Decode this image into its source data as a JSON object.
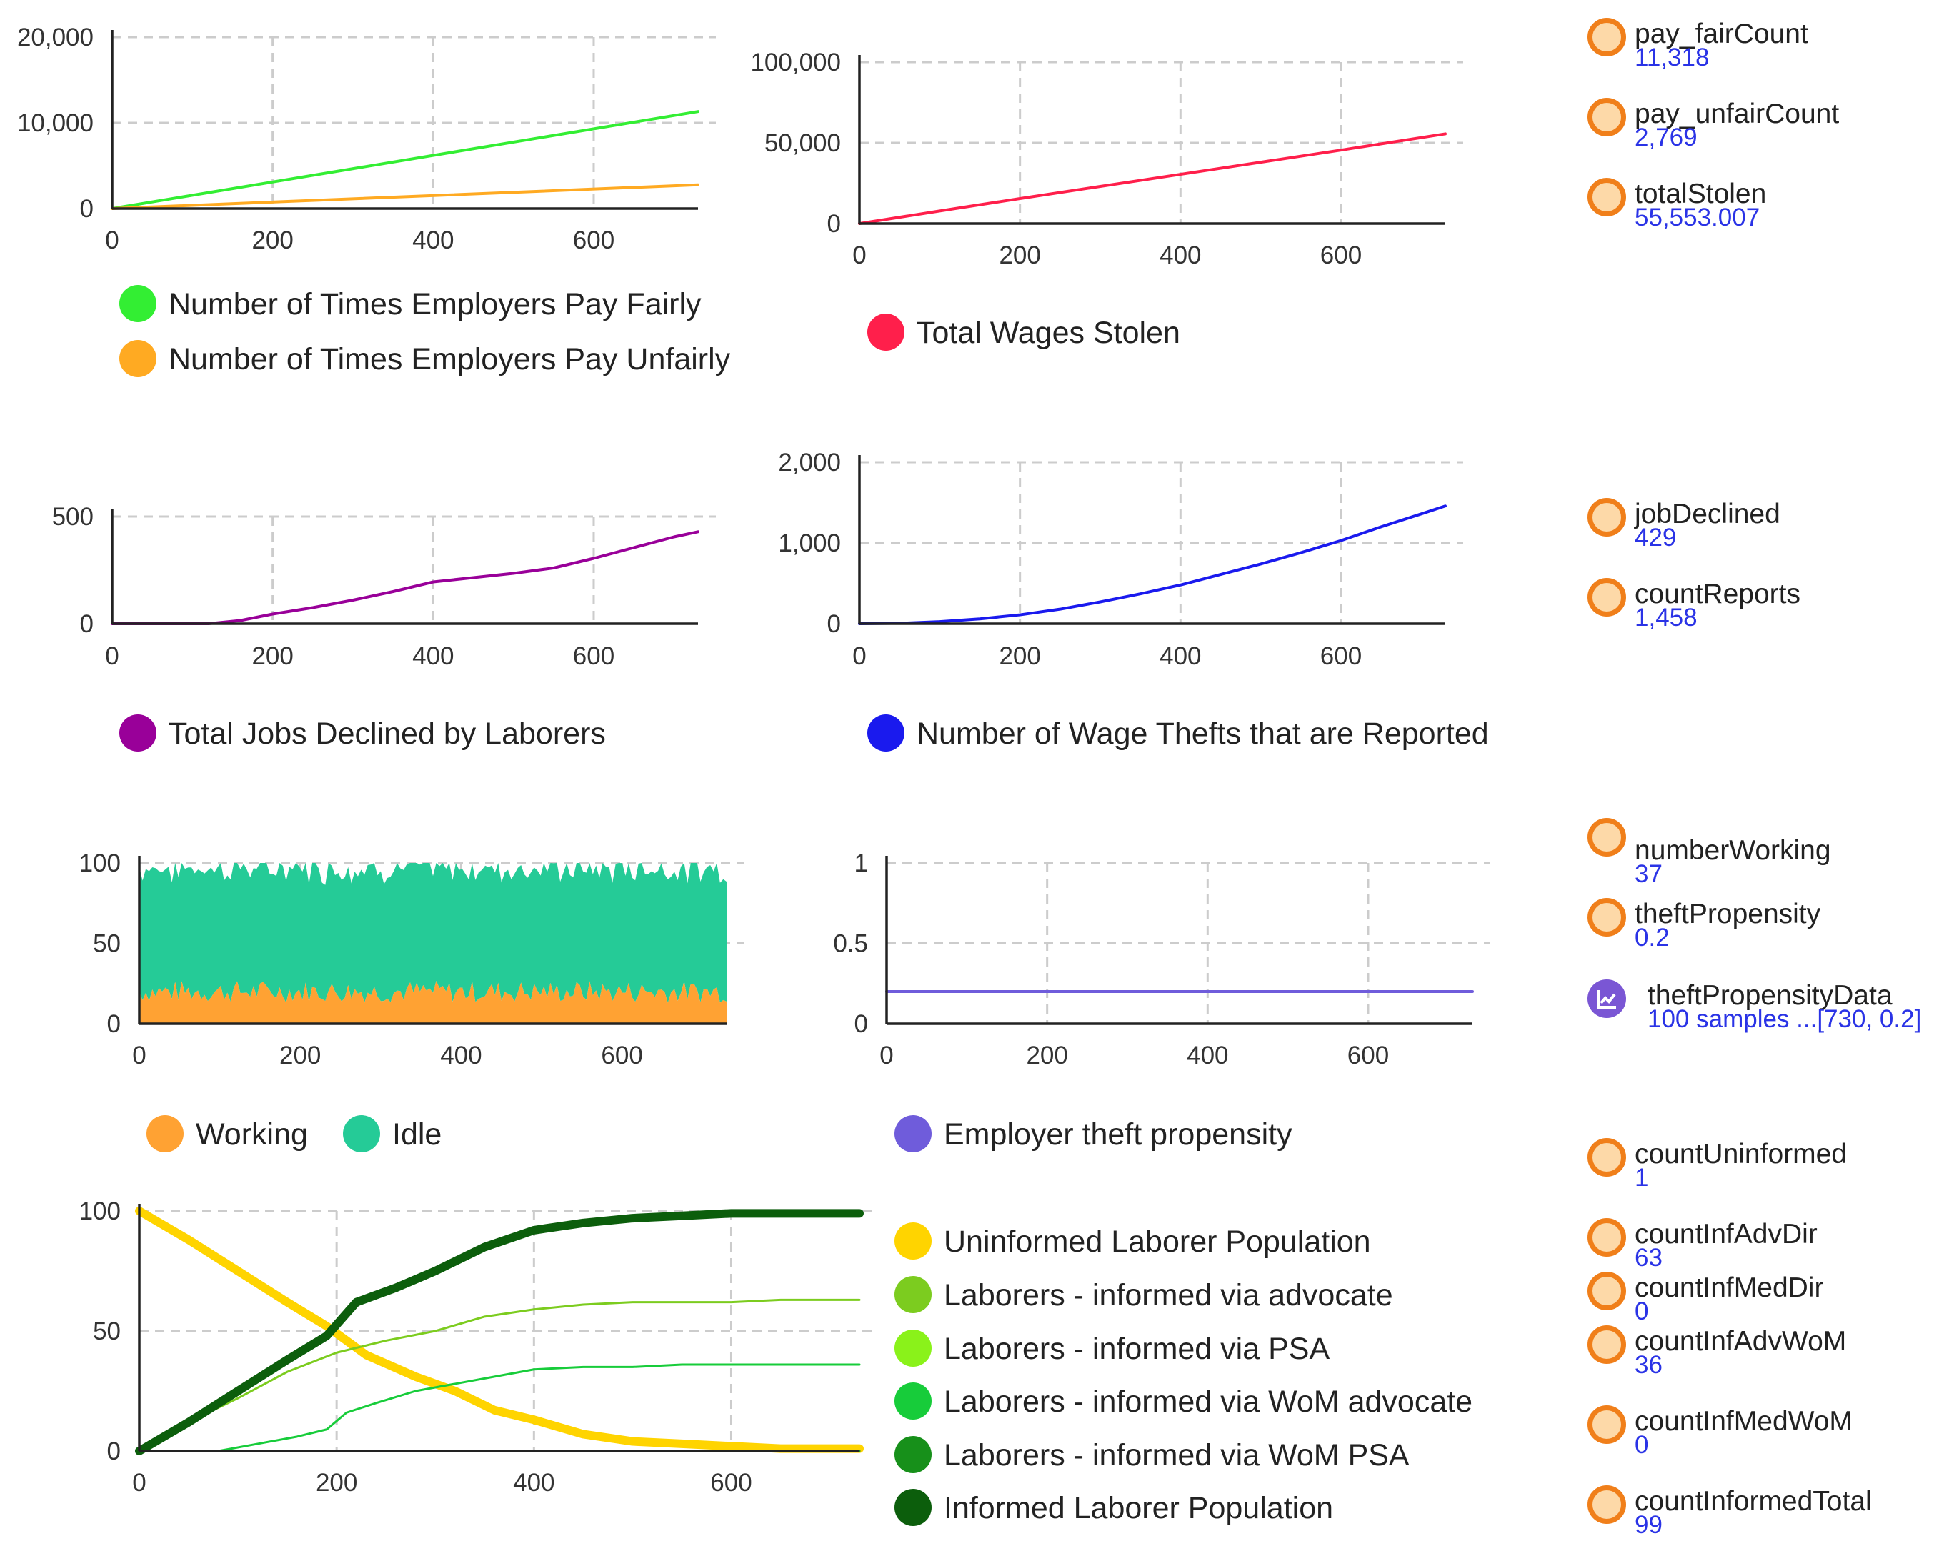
{
  "colors": {
    "payFair": "#33ee33",
    "payUnfair": "#ffaa22",
    "stolen": "#ff1f4b",
    "declined": "#990099",
    "reports": "#1a1aee",
    "working": "#ffa233",
    "idle": "#25cb97",
    "propensity": "#6f5cdb",
    "uninformed": "#ffd400",
    "adv": "#7ccc1f",
    "psa": "#8af21a",
    "womAdv": "#17cc3a",
    "womPsa": "#17901a",
    "informed": "#0c5e0c"
  },
  "chart_data": [
    {
      "id": "pay",
      "type": "line",
      "title": "",
      "xlabel": "",
      "ylabel": "",
      "xlim": [
        0,
        730
      ],
      "ylim": [
        0,
        20000
      ],
      "xticks": [
        "0",
        "200",
        "400",
        "600"
      ],
      "yticks": [
        "0",
        "10,000",
        "20,000"
      ],
      "series": [
        {
          "name": "Number of Times Employers Pay Fairly",
          "color_key": "payFair",
          "x": [
            0,
            730
          ],
          "values": [
            0,
            11318
          ]
        },
        {
          "name": "Number of Times Employers Pay Unfairly",
          "color_key": "payUnfair",
          "x": [
            0,
            730
          ],
          "values": [
            0,
            2769
          ]
        }
      ]
    },
    {
      "id": "stolen",
      "type": "line",
      "title": "",
      "xlabel": "",
      "ylabel": "",
      "xlim": [
        0,
        730
      ],
      "ylim": [
        0,
        100000
      ],
      "xticks": [
        "0",
        "200",
        "400",
        "600"
      ],
      "yticks": [
        "0",
        "50,000",
        "100,000"
      ],
      "series": [
        {
          "name": "Total Wages Stolen",
          "color_key": "stolen",
          "x": [
            0,
            100,
            200,
            300,
            400,
            500,
            600,
            730
          ],
          "values": [
            0,
            7800,
            15500,
            23000,
            30500,
            38000,
            45500,
            55553
          ]
        }
      ]
    },
    {
      "id": "declined",
      "type": "line",
      "title": "",
      "xlabel": "",
      "ylabel": "",
      "xlim": [
        0,
        730
      ],
      "ylim": [
        0,
        500
      ],
      "xticks": [
        "0",
        "200",
        "400",
        "600"
      ],
      "yticks": [
        "0",
        "500"
      ],
      "series": [
        {
          "name": "Total Jobs Declined by Laborers",
          "color_key": "declined",
          "x": [
            0,
            120,
            160,
            200,
            250,
            300,
            350,
            400,
            450,
            500,
            550,
            600,
            650,
            700,
            730
          ],
          "values": [
            0,
            0,
            15,
            45,
            75,
            110,
            150,
            195,
            215,
            235,
            260,
            305,
            355,
            405,
            429
          ]
        }
      ]
    },
    {
      "id": "reports",
      "type": "line",
      "title": "",
      "xlabel": "",
      "ylabel": "",
      "xlim": [
        0,
        730
      ],
      "ylim": [
        0,
        2000
      ],
      "xticks": [
        "0",
        "200",
        "400",
        "600"
      ],
      "yticks": [
        "0",
        "1,000",
        "2,000"
      ],
      "series": [
        {
          "name": "Number of Wage Thefts that are Reported",
          "color_key": "reports",
          "x": [
            0,
            50,
            100,
            150,
            200,
            250,
            300,
            350,
            400,
            450,
            500,
            550,
            600,
            650,
            700,
            730
          ],
          "values": [
            0,
            5,
            25,
            60,
            110,
            180,
            270,
            370,
            480,
            610,
            740,
            880,
            1030,
            1200,
            1360,
            1458
          ]
        }
      ]
    },
    {
      "id": "workers",
      "type": "area",
      "stacked": true,
      "title": "",
      "xlabel": "",
      "ylabel": "",
      "xlim": [
        0,
        730
      ],
      "ylim": [
        0,
        100
      ],
      "xticks": [
        "0",
        "200",
        "400",
        "600"
      ],
      "yticks": [
        "0",
        "50",
        "100"
      ],
      "series": [
        {
          "name": "Working",
          "color_key": "working",
          "mean": 20,
          "noise": 7
        },
        {
          "name": "Idle",
          "color_key": "idle",
          "mean": 77,
          "noise": 5
        }
      ]
    },
    {
      "id": "propensity",
      "type": "line",
      "title": "",
      "xlabel": "",
      "ylabel": "",
      "xlim": [
        0,
        730
      ],
      "ylim": [
        0,
        1
      ],
      "xticks": [
        "0",
        "200",
        "400",
        "600"
      ],
      "yticks": [
        "0",
        "0.5",
        "1"
      ],
      "series": [
        {
          "name": "Employer theft propensity",
          "color_key": "propensity",
          "x": [
            0,
            730
          ],
          "values": [
            0.2,
            0.2
          ]
        }
      ]
    },
    {
      "id": "information",
      "type": "line",
      "title": "",
      "xlabel": "",
      "ylabel": "",
      "xlim": [
        0,
        730
      ],
      "ylim": [
        0,
        100
      ],
      "xticks": [
        "0",
        "200",
        "400",
        "600"
      ],
      "yticks": [
        "0",
        "50",
        "100"
      ],
      "series": [
        {
          "name": "Uninformed Laborer Population",
          "color_key": "uninformed",
          "width": 12,
          "x": [
            0,
            50,
            100,
            150,
            190,
            230,
            280,
            320,
            360,
            400,
            450,
            500,
            550,
            600,
            650,
            730
          ],
          "values": [
            100,
            88,
            75,
            62,
            52,
            40,
            31,
            25,
            17,
            13,
            7,
            4,
            3,
            2,
            1,
            1
          ]
        },
        {
          "name": "Laborers - informed via advocate",
          "color_key": "adv",
          "width": 3,
          "x": [
            0,
            50,
            100,
            150,
            200,
            250,
            300,
            350,
            400,
            450,
            500,
            550,
            600,
            650,
            730
          ],
          "values": [
            0,
            12,
            22,
            33,
            41,
            46,
            50,
            56,
            59,
            61,
            62,
            62,
            62,
            63,
            63
          ]
        },
        {
          "name": "Laborers - informed via PSA",
          "color_key": "psa",
          "width": 3,
          "x": [
            0,
            730
          ],
          "values": [
            0,
            0
          ]
        },
        {
          "name": "Laborers - informed via WoM advocate",
          "color_key": "womAdv",
          "width": 3,
          "x": [
            0,
            80,
            120,
            160,
            190,
            210,
            240,
            280,
            320,
            360,
            400,
            450,
            500,
            550,
            730
          ],
          "values": [
            0,
            0,
            3,
            6,
            9,
            16,
            20,
            25,
            28,
            31,
            34,
            35,
            35,
            36,
            36
          ]
        },
        {
          "name": "Laborers - informed via WoM PSA",
          "color_key": "womPsa",
          "width": 3,
          "x": [
            0,
            730
          ],
          "values": [
            0,
            0
          ]
        },
        {
          "name": "Informed Laborer Population",
          "color_key": "informed",
          "width": 12,
          "x": [
            0,
            50,
            100,
            150,
            190,
            220,
            260,
            300,
            350,
            400,
            450,
            500,
            550,
            600,
            650,
            730
          ],
          "values": [
            0,
            12,
            25,
            38,
            48,
            62,
            68,
            75,
            85,
            92,
            95,
            97,
            98,
            99,
            99,
            99
          ]
        }
      ]
    }
  ],
  "variables": [
    {
      "name": "pay_fairCount",
      "value": "11,318"
    },
    {
      "name": "pay_unfairCount",
      "value": "2,769"
    },
    {
      "name": "totalStolen",
      "value": "55,553.007"
    },
    {
      "name": "jobDeclined",
      "value": "429"
    },
    {
      "name": "countReports",
      "value": "1,458"
    },
    {
      "name": "numberWorking",
      "value": "37"
    },
    {
      "name": "theftPropensity",
      "value": "0.2"
    },
    {
      "name": "theftPropensityData",
      "value": "100 samples ...[730, 0.2]"
    },
    {
      "name": "countUninformed",
      "value": "1"
    },
    {
      "name": "countInfAdvDir",
      "value": "63"
    },
    {
      "name": "countInfMedDir",
      "value": "0"
    },
    {
      "name": "countInfAdvWoM",
      "value": "36"
    },
    {
      "name": "countInfMedWoM",
      "value": "0"
    },
    {
      "name": "countInformedTotal",
      "value": "99"
    }
  ]
}
